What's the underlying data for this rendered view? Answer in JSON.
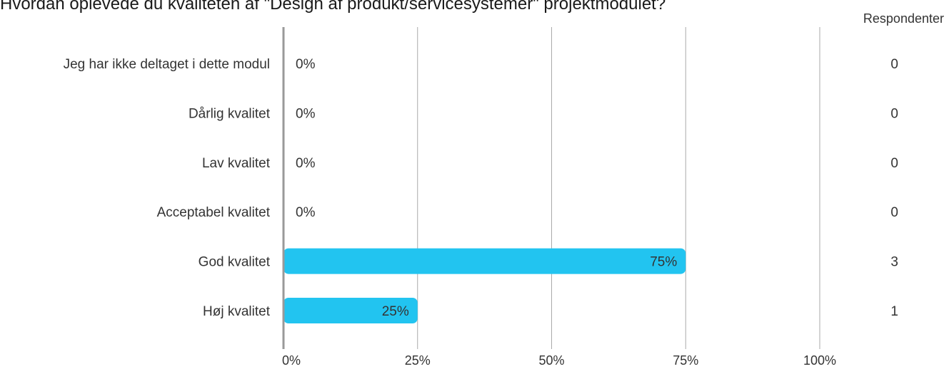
{
  "title": "Hvordan oplevede du kvaliteten af \"Design af produkt/servicesystemer\" projektmodulet?",
  "respondents_header": "Respondenter",
  "colors": {
    "bar": "#22c4f0",
    "grid": "#aaaaaa",
    "axis": "#999999",
    "text": "#333333"
  },
  "chart_data": {
    "type": "bar",
    "orientation": "horizontal",
    "title": "Hvordan oplevede du kvaliteten af \"Design af produkt/servicesystemer\" projektmodulet?",
    "categories": [
      "Jeg har ikke deltaget i dette modul",
      "Dårlig kvalitet",
      "Lav kvalitet",
      "Acceptabel kvalitet",
      "God kvalitet",
      "Høj kvalitet"
    ],
    "values": [
      0,
      0,
      0,
      0,
      75,
      25
    ],
    "value_labels": [
      "0%",
      "0%",
      "0%",
      "0%",
      "75%",
      "25%"
    ],
    "respondents": [
      "0",
      "0",
      "0",
      "0",
      "3",
      "1"
    ],
    "x_ticks": [
      0,
      25,
      50,
      75,
      100
    ],
    "x_tick_labels": [
      "0%",
      "25%",
      "50%",
      "75%",
      "100%"
    ],
    "xlim": [
      0,
      100
    ],
    "grid": true,
    "xlabel": "",
    "ylabel": ""
  }
}
